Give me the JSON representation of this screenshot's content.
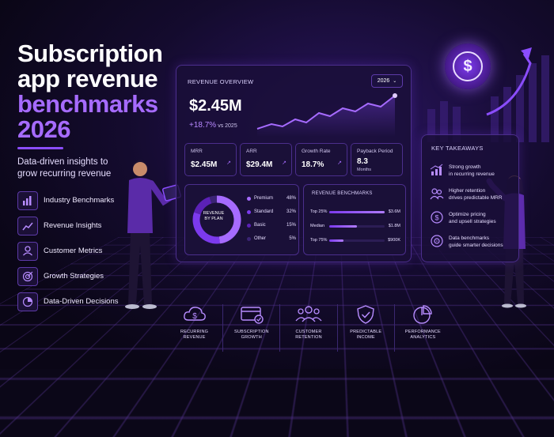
{
  "title": {
    "line1": "Subscription",
    "line2": "app revenue",
    "line3": "benchmarks",
    "line4": "2026"
  },
  "subtitle": {
    "line1": "Data-driven insights to",
    "line2": "grow recurring revenue"
  },
  "features": [
    {
      "label": "Industry Benchmarks",
      "icon": "bar-chart-icon"
    },
    {
      "label": "Revenue Insights",
      "icon": "trend-line-icon"
    },
    {
      "label": "Customer Metrics",
      "icon": "user-icon"
    },
    {
      "label": "Growth Strategies",
      "icon": "target-icon"
    },
    {
      "label": "Data-Driven Decisions",
      "icon": "pie-chart-icon"
    }
  ],
  "overview": {
    "title": "REVENUE OVERVIEW",
    "year": "2026",
    "total": "$2.45M",
    "growth": "+18.7%",
    "growth_note": "vs 2025",
    "kpis": [
      {
        "label": "MRR",
        "value": "$2.45M",
        "unit": ""
      },
      {
        "label": "ARR",
        "value": "$29.4M",
        "unit": ""
      },
      {
        "label": "Growth Rate",
        "value": "18.7%",
        "unit": ""
      },
      {
        "label": "Payback Period",
        "value": "8.3",
        "unit": "Months"
      }
    ],
    "revenue_by_plan": {
      "center_line1": "REVENUE",
      "center_line2": "BY PLAN",
      "items": [
        {
          "label": "Premium",
          "value": "48%",
          "pct": 48,
          "color": "#a66bff"
        },
        {
          "label": "Standard",
          "value": "32%",
          "pct": 32,
          "color": "#7c3aed"
        },
        {
          "label": "Basic",
          "value": "15%",
          "pct": 15,
          "color": "#5b21b6"
        },
        {
          "label": "Other",
          "value": "5%",
          "pct": 5,
          "color": "#3b2475"
        }
      ]
    },
    "benchmarks": {
      "title": "REVENUE BENCHMARKS",
      "rows": [
        {
          "label": "Top 25%",
          "value": "$3.6M",
          "fraction": 1.0
        },
        {
          "label": "Median",
          "value": "$1.8M",
          "fraction": 0.5
        },
        {
          "label": "Top 75%",
          "value": "$900K",
          "fraction": 0.25
        }
      ]
    }
  },
  "takeaways": {
    "title": "KEY TAKEAWAYS",
    "items": [
      {
        "line1": "Strong growth",
        "line2": "in recurring revenue",
        "icon": "growth-icon"
      },
      {
        "line1": "Higher retention",
        "line2": "drives predictable MRR",
        "icon": "users-icon"
      },
      {
        "line1": "Optimize pricing",
        "line2": "and upsell strategies",
        "icon": "dollar-icon"
      },
      {
        "line1": "Data benchmarks",
        "line2": "guide smarter decisions",
        "icon": "target-icon"
      }
    ]
  },
  "bottom": [
    {
      "line1": "RECURRING",
      "line2": "REVENUE",
      "icon": "cloud-dollar-icon"
    },
    {
      "line1": "SUBSCRIPTION",
      "line2": "GROWTH",
      "icon": "card-check-icon"
    },
    {
      "line1": "CUSTOMER",
      "line2": "RETENTION",
      "icon": "group-icon"
    },
    {
      "line1": "PREDICTABLE",
      "line2": "INCOME",
      "icon": "shield-check-icon"
    },
    {
      "line1": "PERFORMANCE",
      "line2": "ANALYTICS",
      "icon": "pie-chart-icon"
    }
  ],
  "coin_symbol": "$"
}
